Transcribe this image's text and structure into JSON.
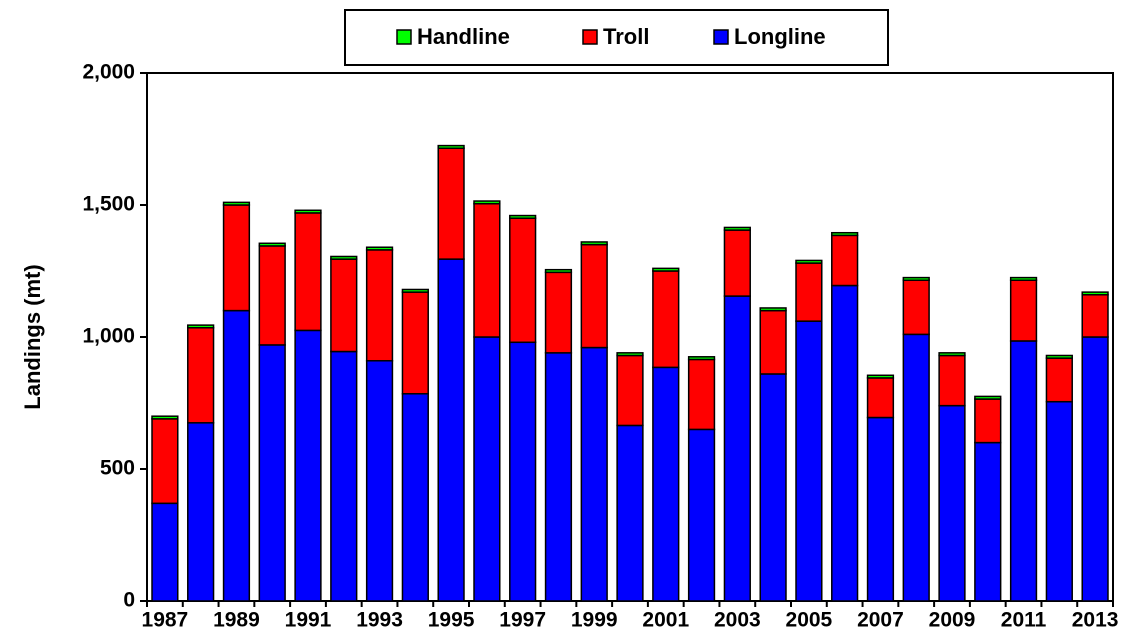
{
  "chart_data": {
    "type": "stacked_bar",
    "y_label": "Landings (mt)",
    "categories": [
      "1987",
      null,
      "1989",
      null,
      "1991",
      null,
      "1993",
      null,
      "1995",
      null,
      "1997",
      null,
      "1999",
      null,
      "2001",
      null,
      "2003",
      null,
      "2005",
      null,
      "2007",
      null,
      "2009",
      null,
      "2011",
      null,
      "2013"
    ],
    "series": [
      {
        "name": "Longline",
        "color": "#0000ff",
        "values": [
          370,
          675,
          1100,
          970,
          1025,
          945,
          910,
          785,
          1295,
          1000,
          980,
          940,
          960,
          665,
          885,
          650,
          1155,
          860,
          1060,
          1195,
          695,
          1010,
          740,
          600,
          985,
          755,
          1000
        ]
      },
      {
        "name": "Troll",
        "color": "#ff0000",
        "values": [
          320,
          360,
          400,
          375,
          445,
          350,
          420,
          385,
          420,
          505,
          470,
          305,
          390,
          265,
          365,
          265,
          250,
          240,
          220,
          190,
          150,
          205,
          190,
          165,
          230,
          165,
          160
        ]
      },
      {
        "name": "Handline",
        "color": "#00ff00",
        "values": [
          10,
          10,
          10,
          10,
          10,
          10,
          10,
          10,
          10,
          10,
          10,
          10,
          10,
          10,
          10,
          10,
          10,
          10,
          10,
          10,
          10,
          10,
          10,
          10,
          10,
          10,
          10
        ]
      }
    ],
    "ylim": [
      0,
      2000
    ],
    "yticks": [
      0,
      500,
      {
        "value": 1000,
        "label": "1,000"
      },
      {
        "value": 1500,
        "label": "1,500"
      },
      {
        "value": 2000,
        "label": "2,000"
      }
    ],
    "grid": false
  }
}
